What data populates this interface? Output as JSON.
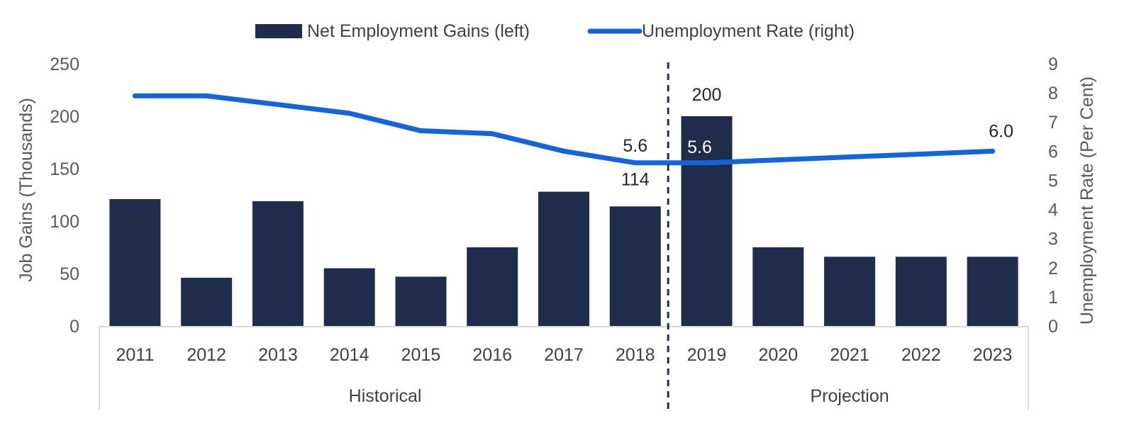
{
  "chart_data": {
    "type": "bar",
    "categories": [
      "2011",
      "2012",
      "2013",
      "2014",
      "2015",
      "2016",
      "2017",
      "2018",
      "2019",
      "2020",
      "2021",
      "2022",
      "2023"
    ],
    "groups": [
      {
        "label": "Historical",
        "from": "2011",
        "to": "2018"
      },
      {
        "label": "Projection",
        "from": "2019",
        "to": "2023"
      }
    ],
    "series": [
      {
        "name": "Net Employment Gains (left)",
        "type": "bar",
        "axis": "left",
        "color": "#1f2c4c",
        "values": [
          121,
          46,
          119,
          55,
          47,
          75,
          128,
          114,
          200,
          75,
          66,
          66,
          66
        ]
      },
      {
        "name": "Unemployment Rate (right)",
        "type": "line",
        "axis": "right",
        "color": "#1565d8",
        "values": [
          7.9,
          7.9,
          7.6,
          7.3,
          6.7,
          6.6,
          6.0,
          5.6,
          5.6,
          5.7,
          5.8,
          5.9,
          6.0
        ]
      }
    ],
    "y_left": {
      "label": "Job Gains (Thousands)",
      "ylim": [
        0,
        250
      ],
      "ticks": [
        "0",
        "50",
        "100",
        "150",
        "200",
        "250"
      ]
    },
    "y_right": {
      "label": "Unemployment Rate (Per Cent)",
      "ylim": [
        0,
        9
      ],
      "ticks": [
        "0",
        "1",
        "2",
        "3",
        "4",
        "5",
        "6",
        "7",
        "8",
        "9"
      ]
    },
    "annotations": [
      {
        "series": 0,
        "category": "2018",
        "text": "114"
      },
      {
        "series": 0,
        "category": "2019",
        "text": "200"
      },
      {
        "series": 1,
        "category": "2018",
        "text": "5.6"
      },
      {
        "series": 1,
        "category": "2019",
        "text": "5.6"
      },
      {
        "series": 1,
        "category": "2023",
        "text": "6.0"
      }
    ],
    "divider_between": [
      "2018",
      "2019"
    ],
    "legend_position": "top-center",
    "grid": false
  }
}
